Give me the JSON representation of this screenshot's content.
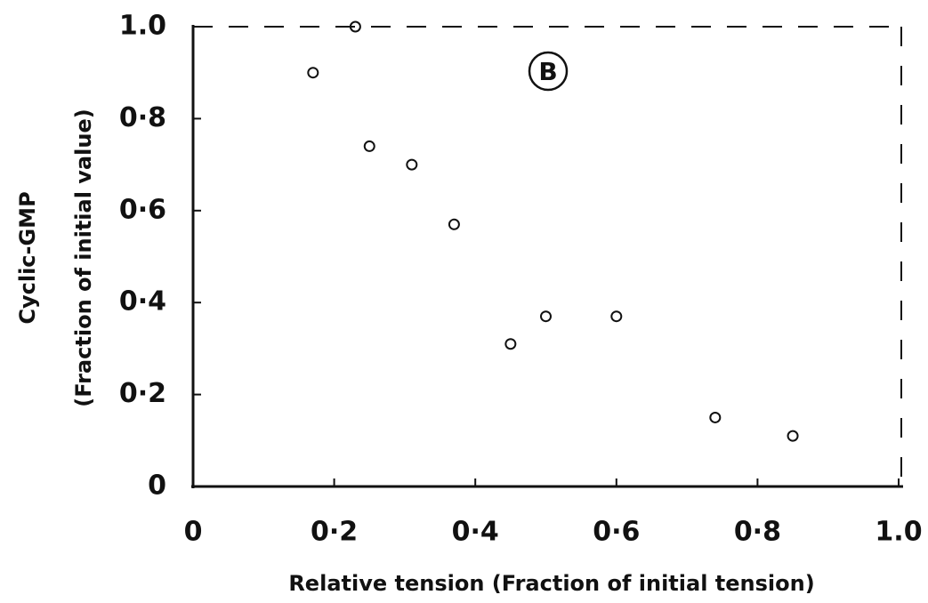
{
  "chart_data": {
    "type": "scatter",
    "annotation": "B",
    "xlabel": "Relative  tension (Fraction  of initial tension)",
    "ylabel": [
      "Cyclic-GMP",
      "(Fraction of initial value)"
    ],
    "x": [
      0.17,
      0.23,
      0.25,
      0.31,
      0.37,
      0.45,
      0.5,
      0.6,
      0.74,
      0.85
    ],
    "values": [
      0.9,
      1.0,
      0.74,
      0.7,
      0.57,
      0.31,
      0.37,
      0.37,
      0.15,
      0.11
    ],
    "color": "#111",
    "xlim": [
      0,
      1
    ],
    "ylim": [
      0,
      1
    ],
    "xticks": [
      0,
      {
        "value": 0.2,
        "label": "0·2"
      },
      {
        "value": 0.4,
        "label": "0·4"
      },
      {
        "value": 0.6,
        "label": "0·6"
      },
      {
        "value": 0.8,
        "label": "0·8"
      },
      {
        "value": 1,
        "label": "1.0"
      }
    ],
    "yticks": [
      0,
      {
        "value": 0.2,
        "label": "0·2"
      },
      {
        "value": 0.4,
        "label": "0·4"
      },
      {
        "value": 0.6,
        "label": "0·6"
      },
      {
        "value": 0.8,
        "label": "0·8"
      },
      {
        "value": 1,
        "label": "1.0"
      }
    ]
  }
}
